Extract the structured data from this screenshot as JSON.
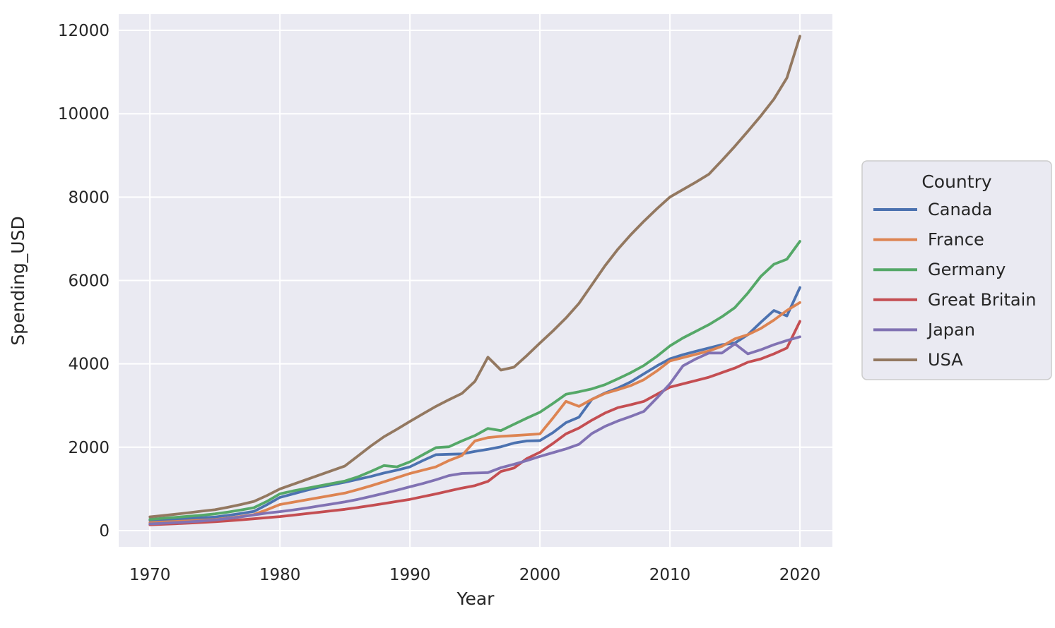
{
  "figure": {
    "background_color": "#ffffff",
    "plot_background_color": "#eaeaf2",
    "grid_color": "#ffffff",
    "text_color": "#262626",
    "legend_border_color": "#cccccc"
  },
  "chart_data": {
    "type": "line",
    "title": "",
    "xlabel": "Year",
    "ylabel": "Spending_USD",
    "x_tick_labels": [
      "1970",
      "1980",
      "1990",
      "2000",
      "2010",
      "2020"
    ],
    "x_tick_values": [
      1970,
      1980,
      1990,
      2000,
      2010,
      2020
    ],
    "y_tick_labels": [
      "0",
      "2000",
      "4000",
      "6000",
      "8000",
      "10000",
      "12000"
    ],
    "y_tick_values": [
      0,
      2000,
      4000,
      6000,
      8000,
      10000,
      12000
    ],
    "xlim": [
      1967.6,
      2022.5
    ],
    "ylim": [
      -390,
      12390
    ],
    "grid": true,
    "legend": {
      "title": "Country",
      "position": "outside-right"
    },
    "x": [
      1970,
      1971,
      1972,
      1973,
      1974,
      1975,
      1976,
      1977,
      1978,
      1979,
      1980,
      1981,
      1982,
      1983,
      1984,
      1985,
      1986,
      1987,
      1988,
      1989,
      1990,
      1991,
      1992,
      1993,
      1994,
      1995,
      1996,
      1997,
      1998,
      1999,
      2000,
      2001,
      2002,
      2003,
      2004,
      2005,
      2006,
      2007,
      2008,
      2009,
      2010,
      2011,
      2012,
      2013,
      2014,
      2015,
      2016,
      2017,
      2018,
      2019,
      2020
    ],
    "series": [
      {
        "name": "Canada",
        "color": "#4c72b0",
        "values": [
          250,
          263,
          277,
          292,
          308,
          325,
          365,
          410,
          460,
          620,
          796,
          880,
          965,
          1040,
          1100,
          1160,
          1230,
          1300,
          1380,
          1450,
          1530,
          1680,
          1820,
          1830,
          1840,
          1900,
          1950,
          2010,
          2100,
          2150,
          2160,
          2350,
          2590,
          2720,
          3150,
          3300,
          3420,
          3570,
          3760,
          3950,
          4120,
          4220,
          4300,
          4380,
          4460,
          4500,
          4700,
          5000,
          5280,
          5150,
          5830
        ]
      },
      {
        "name": "France",
        "color": "#dd8452",
        "values": [
          192,
          205,
          220,
          235,
          250,
          265,
          300,
          340,
          385,
          500,
          626,
          680,
          735,
          790,
          845,
          900,
          985,
          1075,
          1170,
          1270,
          1370,
          1450,
          1530,
          1680,
          1800,
          2150,
          2230,
          2260,
          2280,
          2300,
          2320,
          2700,
          3100,
          2980,
          3150,
          3290,
          3380,
          3480,
          3620,
          3830,
          4070,
          4150,
          4230,
          4310,
          4420,
          4600,
          4700,
          4850,
          5050,
          5280,
          5470
        ]
      },
      {
        "name": "Germany",
        "color": "#55a868",
        "values": [
          270,
          295,
          320,
          345,
          370,
          400,
          445,
          495,
          550,
          700,
          882,
          950,
          1010,
          1070,
          1130,
          1190,
          1290,
          1420,
          1560,
          1530,
          1650,
          1820,
          1990,
          2010,
          2150,
          2280,
          2450,
          2400,
          2550,
          2700,
          2840,
          3050,
          3270,
          3330,
          3400,
          3500,
          3640,
          3790,
          3960,
          4180,
          4430,
          4620,
          4780,
          4940,
          5130,
          5350,
          5700,
          6100,
          6390,
          6510,
          6940
        ]
      },
      {
        "name": "Great Britain",
        "color": "#c44e52",
        "values": [
          140,
          152,
          165,
          180,
          196,
          215,
          235,
          258,
          284,
          310,
          336,
          370,
          405,
          440,
          475,
          510,
          555,
          600,
          650,
          700,
          750,
          815,
          880,
          950,
          1020,
          1080,
          1180,
          1420,
          1500,
          1730,
          1880,
          2090,
          2320,
          2460,
          2650,
          2820,
          2950,
          3020,
          3100,
          3270,
          3440,
          3520,
          3600,
          3680,
          3790,
          3900,
          4040,
          4120,
          4240,
          4380,
          5020
        ]
      },
      {
        "name": "Japan",
        "color": "#8172b3",
        "values": [
          160,
          175,
          192,
          210,
          230,
          255,
          290,
          330,
          375,
          420,
          455,
          495,
          540,
          590,
          640,
          690,
          750,
          820,
          895,
          970,
          1050,
          1130,
          1220,
          1320,
          1370,
          1380,
          1390,
          1510,
          1590,
          1680,
          1780,
          1870,
          1960,
          2070,
          2330,
          2500,
          2630,
          2740,
          2860,
          3180,
          3520,
          3950,
          4120,
          4260,
          4260,
          4480,
          4240,
          4340,
          4460,
          4560,
          4650
        ]
      },
      {
        "name": "USA",
        "color": "#937860",
        "values": [
          330,
          360,
          393,
          430,
          467,
          500,
          560,
          625,
          700,
          840,
          1000,
          1110,
          1220,
          1330,
          1440,
          1550,
          1790,
          2030,
          2250,
          2430,
          2620,
          2800,
          2980,
          3140,
          3290,
          3580,
          4160,
          3850,
          3920,
          4200,
          4500,
          4790,
          5100,
          5450,
          5900,
          6350,
          6750,
          7100,
          7420,
          7720,
          8000,
          8180,
          8360,
          8550,
          8880,
          9220,
          9580,
          9950,
          10350,
          10860,
          11860
        ]
      }
    ]
  }
}
